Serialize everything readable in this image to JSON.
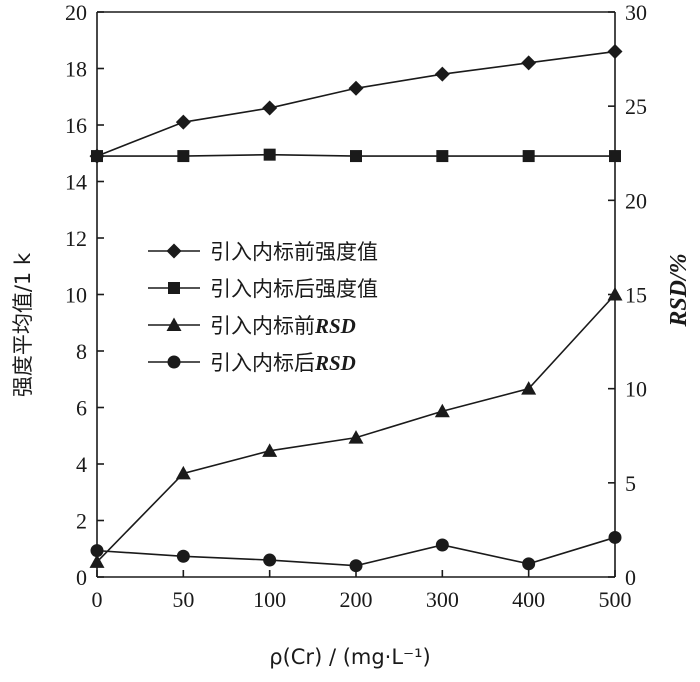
{
  "chart_data": {
    "type": "line",
    "title": "",
    "xlabel": "ρ(Cr) / (mg·L⁻¹)",
    "ylabel_left": "强度平均值/1 k",
    "ylabel_right": "RSD/%",
    "x": [
      0,
      50,
      100,
      200,
      300,
      400,
      500
    ],
    "x_tick_labels": [
      "0",
      "50",
      "100",
      "200",
      "300",
      "400",
      "500"
    ],
    "xlim": [
      0,
      500
    ],
    "x_scale": "categorical-evenly-spaced",
    "ylim_left": [
      0,
      20
    ],
    "y_ticks_left": [
      "0",
      "2",
      "4",
      "6",
      "8",
      "10",
      "12",
      "14",
      "16",
      "18",
      "20"
    ],
    "ylim_right": [
      0,
      30
    ],
    "y_ticks_right": [
      "0",
      "5",
      "10",
      "15",
      "20",
      "25",
      "30"
    ],
    "grid": false,
    "legend_position": "center-left",
    "series": [
      {
        "name": "引入内标前强度值",
        "marker": "diamond",
        "axis": "left",
        "values": [
          14.9,
          16.1,
          16.6,
          17.3,
          17.8,
          18.2,
          18.6
        ]
      },
      {
        "name": "引入内标后强度值",
        "marker": "square",
        "axis": "left",
        "values": [
          14.9,
          14.9,
          14.95,
          14.9,
          14.9,
          14.9,
          14.9
        ]
      },
      {
        "name": "引入内标前RSD",
        "marker": "triangle",
        "axis": "right",
        "values": [
          0.8,
          5.5,
          6.7,
          7.4,
          8.8,
          10.0,
          15.0
        ]
      },
      {
        "name": "引入内标后RSD",
        "marker": "circle",
        "axis": "right",
        "values": [
          1.4,
          1.1,
          0.9,
          0.6,
          1.7,
          0.7,
          2.1
        ]
      }
    ]
  }
}
